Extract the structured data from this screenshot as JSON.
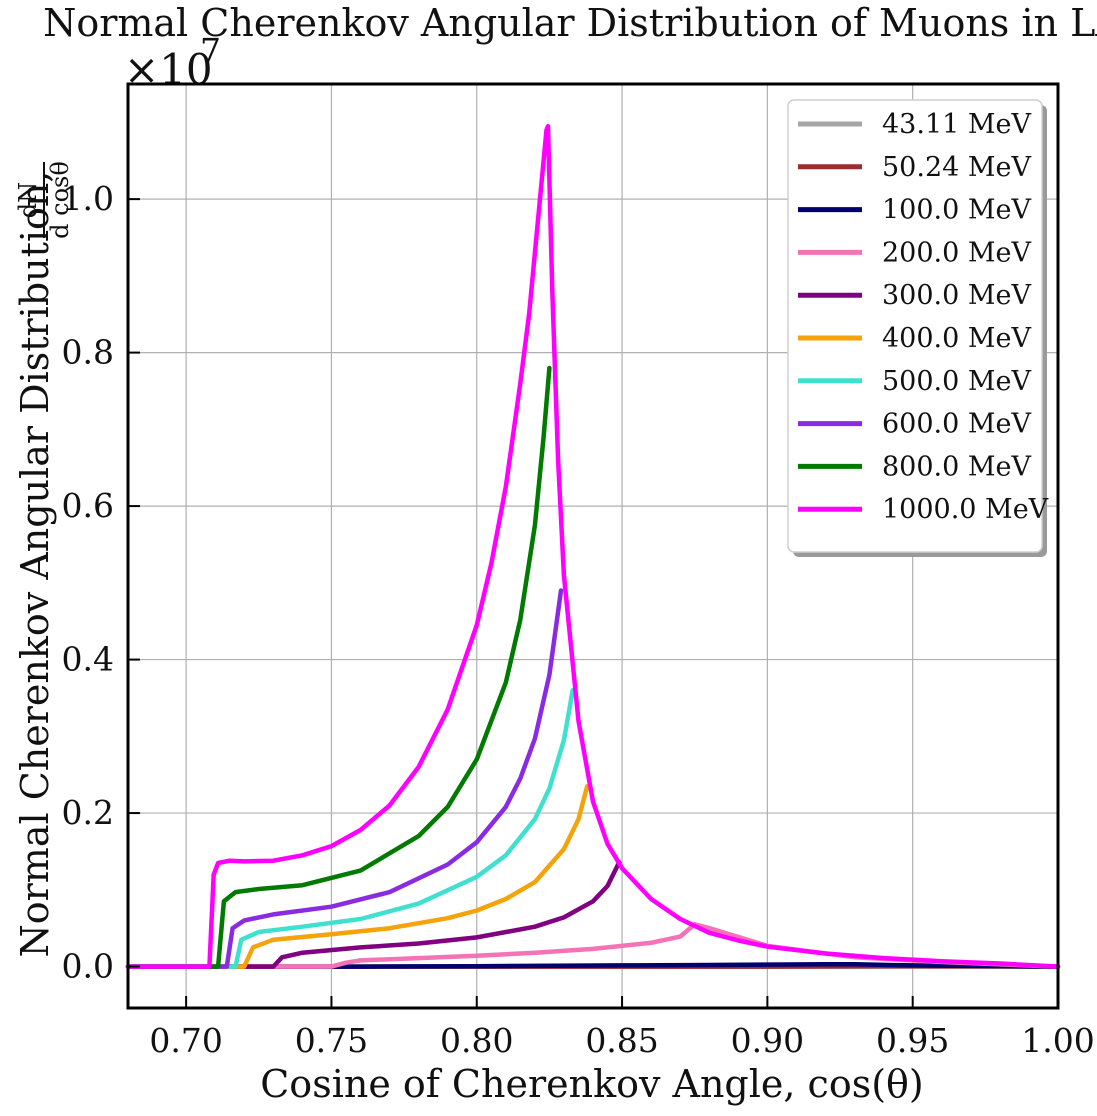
{
  "chart_data": {
    "type": "line",
    "title": "Normal Cherenkov Angular Distribution of Muons in LAr",
    "xlabel": "Cosine of Cherenkov Angle, cos(θ)",
    "ylabel": "Normal Cherenkov Angular Distribution,",
    "ylabel_fraction": {
      "numerator": "dN",
      "denominator": "d cosθ"
    },
    "y_multiplier": {
      "base": "×10",
      "exponent": "7"
    },
    "xlim": [
      0.68,
      1.0
    ],
    "ylim": [
      -0.054,
      1.15
    ],
    "grid": true,
    "legend_position": "top-right",
    "x_ticks": [
      0.7,
      0.75,
      0.8,
      0.85,
      0.9,
      0.95,
      1.0
    ],
    "x_tick_labels": [
      "0.70",
      "0.75",
      "0.80",
      "0.85",
      "0.90",
      "0.95",
      "1.00"
    ],
    "y_ticks": [
      0.0,
      0.2,
      0.4,
      0.6,
      0.8,
      1.0
    ],
    "y_tick_labels": [
      "0.0",
      "0.2",
      "0.4",
      "0.6",
      "0.8",
      "1.0"
    ],
    "series": [
      {
        "name": "43.11 MeV",
        "color": "#a6a6a6",
        "x": [
          0.68,
          1.0
        ],
        "y": [
          0.0,
          0.0
        ]
      },
      {
        "name": "50.24 MeV",
        "color": "#9b2d2d",
        "x": [
          0.68,
          0.9,
          0.95,
          0.98,
          1.0
        ],
        "y": [
          0.0,
          0.0,
          0.0005,
          0.0002,
          0.0
        ]
      },
      {
        "name": "100.0 MeV",
        "color": "#00006e",
        "x": [
          0.68,
          0.76,
          0.8,
          0.85,
          0.88,
          0.9,
          0.92,
          0.93,
          0.95,
          0.97,
          1.0
        ],
        "y": [
          0.0,
          0.0,
          0.0005,
          0.0015,
          0.002,
          0.0025,
          0.003,
          0.003,
          0.0015,
          0.0008,
          0.0
        ]
      },
      {
        "name": "200.0 MeV",
        "color": "#f472b6",
        "x": [
          0.68,
          0.75,
          0.755,
          0.76,
          0.78,
          0.8,
          0.82,
          0.84,
          0.86,
          0.87,
          0.875,
          0.88,
          0.9,
          0.93,
          0.96,
          1.0
        ],
        "y": [
          0.0,
          0.0,
          0.005,
          0.008,
          0.011,
          0.014,
          0.018,
          0.023,
          0.031,
          0.039,
          0.055,
          0.05,
          0.027,
          0.012,
          0.006,
          0.0
        ]
      },
      {
        "name": "300.0 MeV",
        "color": "#800080",
        "x": [
          0.68,
          0.73,
          0.733,
          0.74,
          0.76,
          0.78,
          0.8,
          0.82,
          0.83,
          0.84,
          0.845,
          0.849
        ],
        "y": [
          0.0,
          0.0,
          0.012,
          0.018,
          0.025,
          0.03,
          0.038,
          0.052,
          0.064,
          0.085,
          0.105,
          0.136
        ]
      },
      {
        "name": "400.0 MeV",
        "color": "#f5a30a",
        "x": [
          0.68,
          0.72,
          0.723,
          0.73,
          0.75,
          0.77,
          0.79,
          0.8,
          0.81,
          0.82,
          0.83,
          0.835,
          0.838
        ],
        "y": [
          0.0,
          0.0,
          0.025,
          0.035,
          0.042,
          0.05,
          0.063,
          0.073,
          0.088,
          0.11,
          0.153,
          0.192,
          0.235
        ]
      },
      {
        "name": "500.0 MeV",
        "color": "#40e0d0",
        "x": [
          0.68,
          0.717,
          0.719,
          0.725,
          0.74,
          0.76,
          0.78,
          0.8,
          0.81,
          0.82,
          0.825,
          0.83,
          0.833
        ],
        "y": [
          0.0,
          0.0,
          0.035,
          0.045,
          0.052,
          0.062,
          0.082,
          0.117,
          0.145,
          0.192,
          0.232,
          0.295,
          0.36
        ]
      },
      {
        "name": "600.0 MeV",
        "color": "#8a2be2",
        "x": [
          0.68,
          0.714,
          0.716,
          0.72,
          0.73,
          0.75,
          0.77,
          0.79,
          0.8,
          0.81,
          0.815,
          0.82,
          0.825,
          0.829
        ],
        "y": [
          0.0,
          0.0,
          0.05,
          0.06,
          0.068,
          0.078,
          0.097,
          0.133,
          0.162,
          0.208,
          0.245,
          0.297,
          0.38,
          0.49
        ]
      },
      {
        "name": "800.0 MeV",
        "color": "#007a00",
        "x": [
          0.68,
          0.711,
          0.713,
          0.717,
          0.725,
          0.74,
          0.76,
          0.78,
          0.79,
          0.8,
          0.81,
          0.815,
          0.82,
          0.823,
          0.825
        ],
        "y": [
          0.0,
          0.0,
          0.085,
          0.097,
          0.101,
          0.106,
          0.125,
          0.17,
          0.208,
          0.27,
          0.37,
          0.452,
          0.575,
          0.69,
          0.78
        ]
      },
      {
        "name": "1000.0 MeV",
        "color": "#ff00ff",
        "x": [
          0.68,
          0.708,
          0.7095,
          0.711,
          0.715,
          0.72,
          0.73,
          0.74,
          0.75,
          0.76,
          0.77,
          0.78,
          0.79,
          0.8,
          0.805,
          0.81,
          0.815,
          0.818,
          0.82,
          0.822,
          0.824,
          0.8245,
          0.826,
          0.828,
          0.83,
          0.835,
          0.84,
          0.845,
          0.85,
          0.86,
          0.87,
          0.88,
          0.89,
          0.9,
          0.92,
          0.94,
          0.96,
          0.98,
          1.0
        ],
        "y": [
          0.0,
          0.0,
          0.12,
          0.135,
          0.138,
          0.137,
          0.138,
          0.145,
          0.157,
          0.178,
          0.21,
          0.26,
          0.335,
          0.445,
          0.525,
          0.625,
          0.76,
          0.85,
          0.93,
          1.01,
          1.09,
          1.095,
          0.88,
          0.66,
          0.51,
          0.32,
          0.215,
          0.16,
          0.128,
          0.088,
          0.062,
          0.044,
          0.034,
          0.026,
          0.017,
          0.011,
          0.007,
          0.004,
          0.0
        ]
      }
    ]
  }
}
